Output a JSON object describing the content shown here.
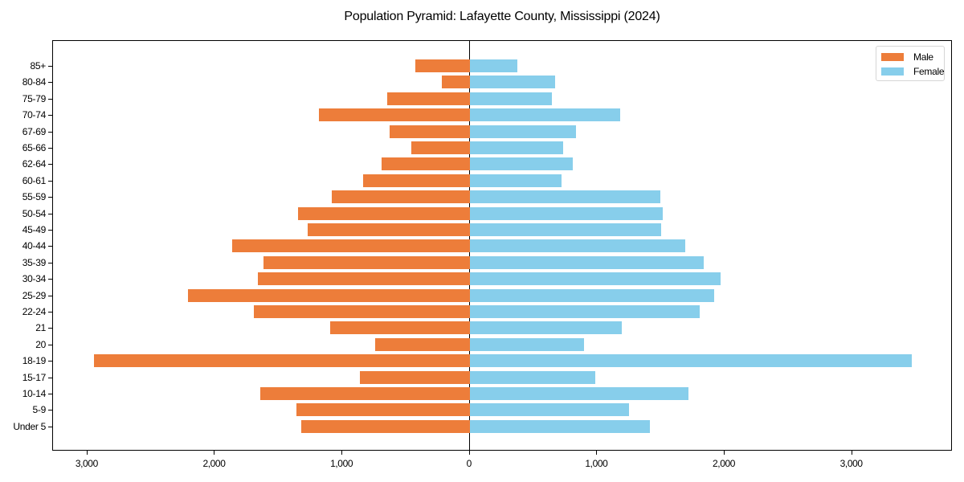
{
  "chart_data": {
    "type": "bar",
    "orientation": "horizontal",
    "subtype": "population-pyramid",
    "title": "Population Pyramid: Lafayette County, Mississippi (2024)",
    "xlabel": "",
    "ylabel": "",
    "xlim": [
      -3270,
      3790
    ],
    "xticks": [
      -3000,
      -2000,
      -1000,
      0,
      1000,
      2000,
      3000
    ],
    "xtick_labels": [
      "3,000",
      "2,000",
      "1,000",
      "0",
      "1,000",
      "2,000",
      "3,000"
    ],
    "grid": false,
    "legend_position": "upper right",
    "categories": [
      "Under 5",
      "5-9",
      "10-14",
      "15-17",
      "18-19",
      "20",
      "21",
      "22-24",
      "25-29",
      "30-34",
      "35-39",
      "40-44",
      "45-49",
      "50-54",
      "55-59",
      "60-61",
      "62-64",
      "65-66",
      "67-69",
      "70-74",
      "75-79",
      "80-84",
      "85+"
    ],
    "series": [
      {
        "name": "Male",
        "color": "#ED7D3A",
        "values": [
          1323,
          1361,
          1645,
          863,
          2949,
          744,
          1096,
          1695,
          2212,
          1663,
          1619,
          1865,
          1273,
          1348,
          1084,
          838,
          693,
          460,
          630,
          1185,
          649,
          220,
          428
        ]
      },
      {
        "name": "Female",
        "color": "#87CEEB",
        "values": [
          1411,
          1248,
          1714,
          983,
          3466,
          895,
          1191,
          1802,
          1916,
          1966,
          1834,
          1689,
          1500,
          1512,
          1493,
          718,
          807,
          731,
          832,
          1178,
          643,
          668,
          372
        ]
      }
    ]
  },
  "legend": {
    "items": [
      {
        "label": "Male",
        "color": "#ED7D3A"
      },
      {
        "label": "Female",
        "color": "#87CEEB"
      }
    ]
  }
}
